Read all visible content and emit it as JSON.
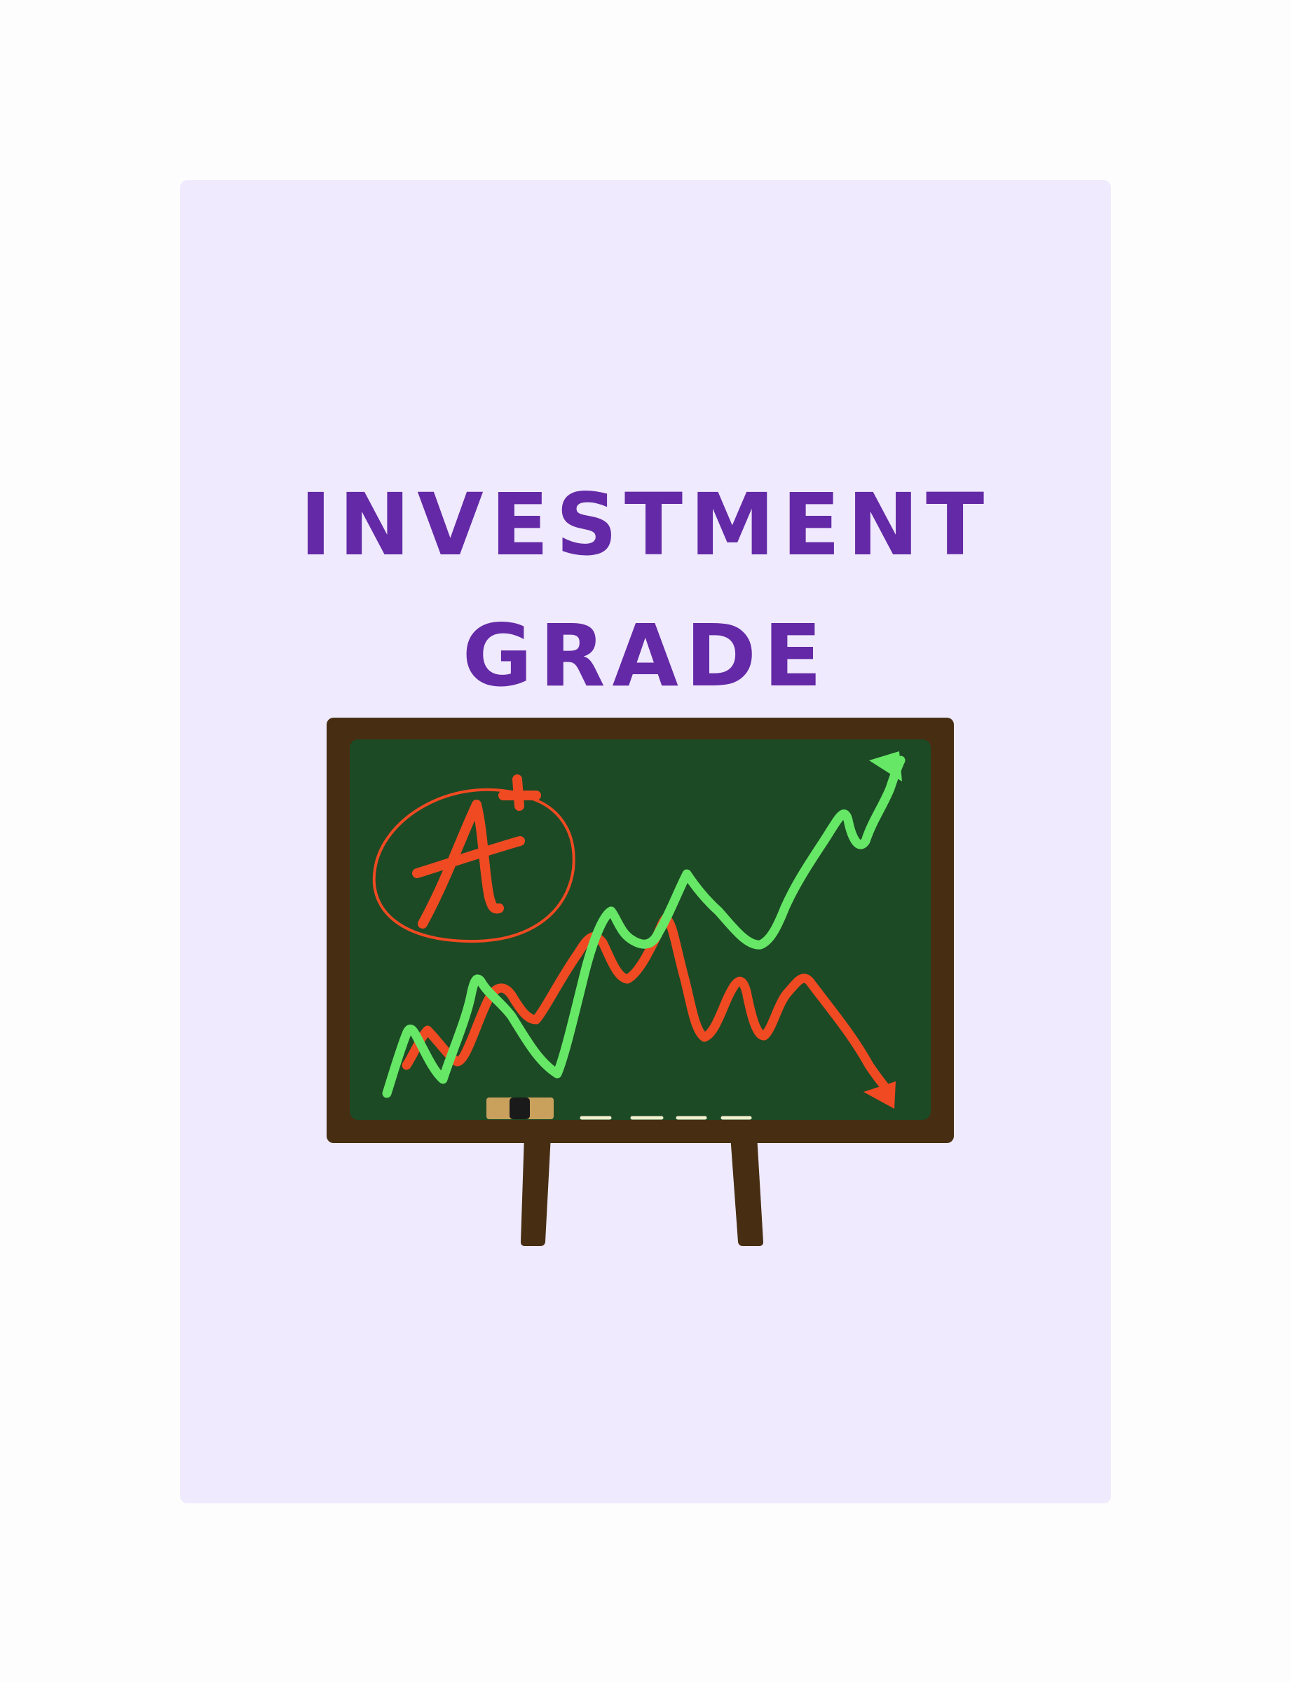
{
  "title": {
    "line1": "INVESTMENT",
    "line2": "GRADE"
  },
  "illustration": {
    "icon": "chalkboard-easel-icon",
    "grade_mark": "A+",
    "trends": [
      "rising-line",
      "falling-line"
    ]
  },
  "colors": {
    "page_background": "#fdfdfd",
    "card_background": "#efeafd",
    "title": "#6429a6",
    "board_frame": "#472e13",
    "board_surface": "#1c4a25",
    "rising_line": "#66e866",
    "falling_line": "#f04a22",
    "eraser": "#c9a15c",
    "eraser_top": "#1a1a1a",
    "chalk": "#f3f0d0"
  }
}
